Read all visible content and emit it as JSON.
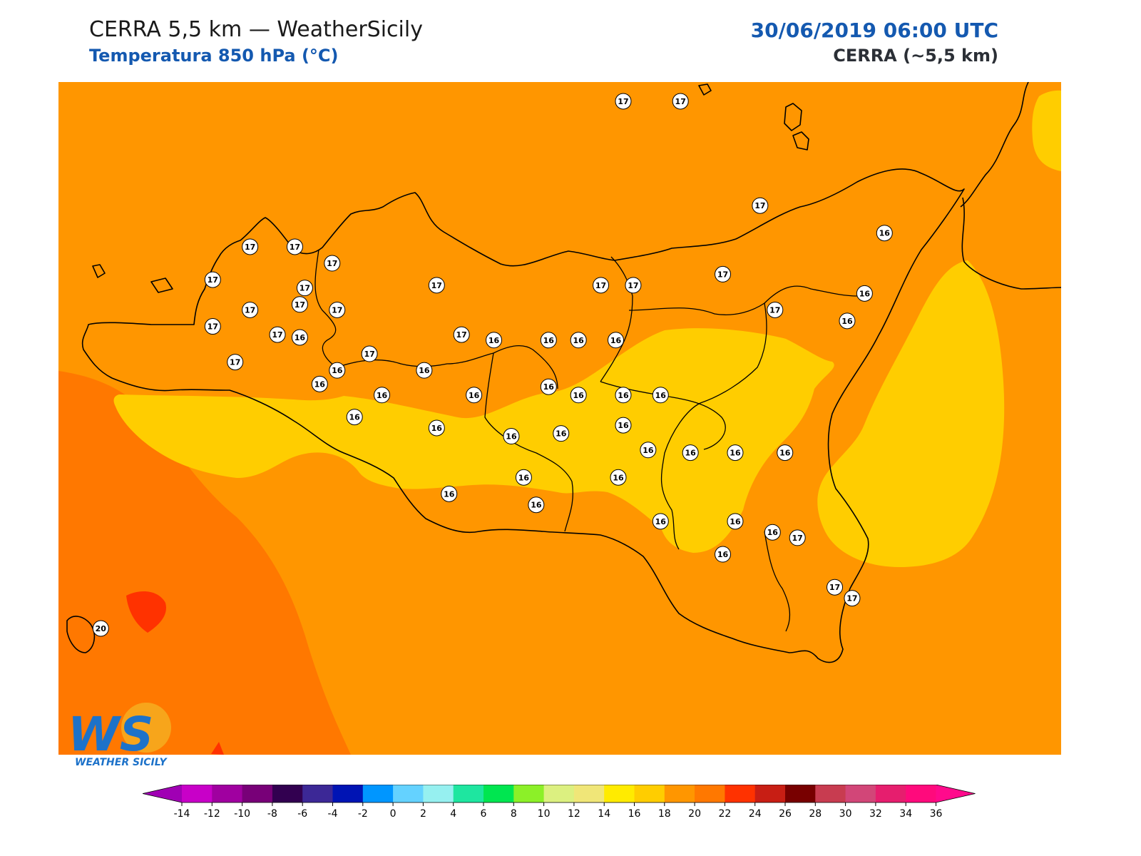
{
  "header": {
    "title": "CERRA 5,5 km — WeatherSicily",
    "subtitle": "Temperatura 850 hPa (°C)",
    "datetime": "30/06/2019 06:00 UTC",
    "model": "CERRA (~5,5 km)"
  },
  "logo": {
    "initials": "WS",
    "text": "WEATHER SICILY"
  },
  "legend": {
    "ticks": [
      "-14",
      "-12",
      "-10",
      "-8",
      "-6",
      "-4",
      "-2",
      "0",
      "2",
      "4",
      "6",
      "8",
      "10",
      "12",
      "14",
      "16",
      "18",
      "20",
      "22",
      "24",
      "26",
      "28",
      "30",
      "32",
      "34",
      "36"
    ],
    "colors": [
      "#c800c8",
      "#a000a0",
      "#780078",
      "#320050",
      "#3c2896",
      "#0014b4",
      "#0096ff",
      "#64d2ff",
      "#96f0f0",
      "#1ee6a0",
      "#00e650",
      "#8cf028",
      "#dcf080",
      "#f0e678",
      "#ffeb00",
      "#ffcd00",
      "#ff9600",
      "#ff7800",
      "#ff3200",
      "#c81e14",
      "#780000",
      "#c83c50",
      "#d24678",
      "#e61e6e",
      "#ff0a7c"
    ],
    "under_color": "#a000b4",
    "over_color": "#ff0a8c"
  },
  "map": {
    "field_colors": {
      "t16_18": "#ff9600",
      "t14_16": "#ffcd00",
      "t18_20": "#ff7800",
      "t20_22": "#ff3200"
    },
    "labels": [
      {
        "v": "17",
        "lon": 14.1,
        "lat": 38.75
      },
      {
        "v": "17",
        "lon": 14.33,
        "lat": 38.75
      },
      {
        "v": "17",
        "lon": 12.6,
        "lat": 38.22
      },
      {
        "v": "17",
        "lon": 12.78,
        "lat": 38.22
      },
      {
        "v": "17",
        "lon": 12.93,
        "lat": 38.16
      },
      {
        "v": "17",
        "lon": 12.45,
        "lat": 38.1
      },
      {
        "v": "17",
        "lon": 12.82,
        "lat": 38.07
      },
      {
        "v": "17",
        "lon": 13.35,
        "lat": 38.08
      },
      {
        "v": "17",
        "lon": 14.01,
        "lat": 38.08
      },
      {
        "v": "17",
        "lon": 14.14,
        "lat": 38.08
      },
      {
        "v": "17",
        "lon": 14.65,
        "lat": 38.37
      },
      {
        "v": "16",
        "lon": 15.15,
        "lat": 38.27
      },
      {
        "v": "17",
        "lon": 14.5,
        "lat": 38.12
      },
      {
        "v": "16",
        "lon": 15.07,
        "lat": 38.05
      },
      {
        "v": "17",
        "lon": 12.6,
        "lat": 37.99
      },
      {
        "v": "17",
        "lon": 12.8,
        "lat": 38.01
      },
      {
        "v": "17",
        "lon": 12.95,
        "lat": 37.99
      },
      {
        "v": "16",
        "lon": 15.0,
        "lat": 37.95
      },
      {
        "v": "17",
        "lon": 14.71,
        "lat": 37.99
      },
      {
        "v": "17",
        "lon": 12.45,
        "lat": 37.93
      },
      {
        "v": "17",
        "lon": 12.71,
        "lat": 37.9
      },
      {
        "v": "16",
        "lon": 12.8,
        "lat": 37.89
      },
      {
        "v": "17",
        "lon": 13.45,
        "lat": 37.9
      },
      {
        "v": "16",
        "lon": 13.58,
        "lat": 37.88
      },
      {
        "v": "16",
        "lon": 13.8,
        "lat": 37.88
      },
      {
        "v": "16",
        "lon": 13.92,
        "lat": 37.88
      },
      {
        "v": "16",
        "lon": 14.07,
        "lat": 37.88
      },
      {
        "v": "17",
        "lon": 12.54,
        "lat": 37.8
      },
      {
        "v": "17",
        "lon": 13.08,
        "lat": 37.83
      },
      {
        "v": "16",
        "lon": 12.95,
        "lat": 37.77
      },
      {
        "v": "16",
        "lon": 13.3,
        "lat": 37.77
      },
      {
        "v": "16",
        "lon": 12.88,
        "lat": 37.72
      },
      {
        "v": "16",
        "lon": 13.13,
        "lat": 37.68
      },
      {
        "v": "16",
        "lon": 13.5,
        "lat": 37.68
      },
      {
        "v": "16",
        "lon": 13.8,
        "lat": 37.71
      },
      {
        "v": "16",
        "lon": 13.92,
        "lat": 37.68
      },
      {
        "v": "16",
        "lon": 14.1,
        "lat": 37.68
      },
      {
        "v": "16",
        "lon": 14.25,
        "lat": 37.68
      },
      {
        "v": "16",
        "lon": 13.02,
        "lat": 37.6
      },
      {
        "v": "16",
        "lon": 13.35,
        "lat": 37.56
      },
      {
        "v": "16",
        "lon": 13.65,
        "lat": 37.53
      },
      {
        "v": "16",
        "lon": 13.85,
        "lat": 37.54
      },
      {
        "v": "16",
        "lon": 14.1,
        "lat": 37.57
      },
      {
        "v": "16",
        "lon": 14.2,
        "lat": 37.48
      },
      {
        "v": "16",
        "lon": 14.37,
        "lat": 37.47
      },
      {
        "v": "16",
        "lon": 14.55,
        "lat": 37.47
      },
      {
        "v": "16",
        "lon": 14.75,
        "lat": 37.47
      },
      {
        "v": "16",
        "lon": 13.7,
        "lat": 37.38
      },
      {
        "v": "16",
        "lon": 14.08,
        "lat": 37.38
      },
      {
        "v": "16",
        "lon": 13.4,
        "lat": 37.32
      },
      {
        "v": "16",
        "lon": 13.75,
        "lat": 37.28
      },
      {
        "v": "16",
        "lon": 14.25,
        "lat": 37.22
      },
      {
        "v": "16",
        "lon": 14.55,
        "lat": 37.22
      },
      {
        "v": "16",
        "lon": 14.7,
        "lat": 37.18
      },
      {
        "v": "17",
        "lon": 14.8,
        "lat": 37.16
      },
      {
        "v": "16",
        "lon": 14.5,
        "lat": 37.1
      },
      {
        "v": "17",
        "lon": 14.95,
        "lat": 36.98
      },
      {
        "v": "17",
        "lon": 15.02,
        "lat": 36.94
      },
      {
        "v": "20",
        "lon": 12.0,
        "lat": 36.83
      }
    ]
  }
}
